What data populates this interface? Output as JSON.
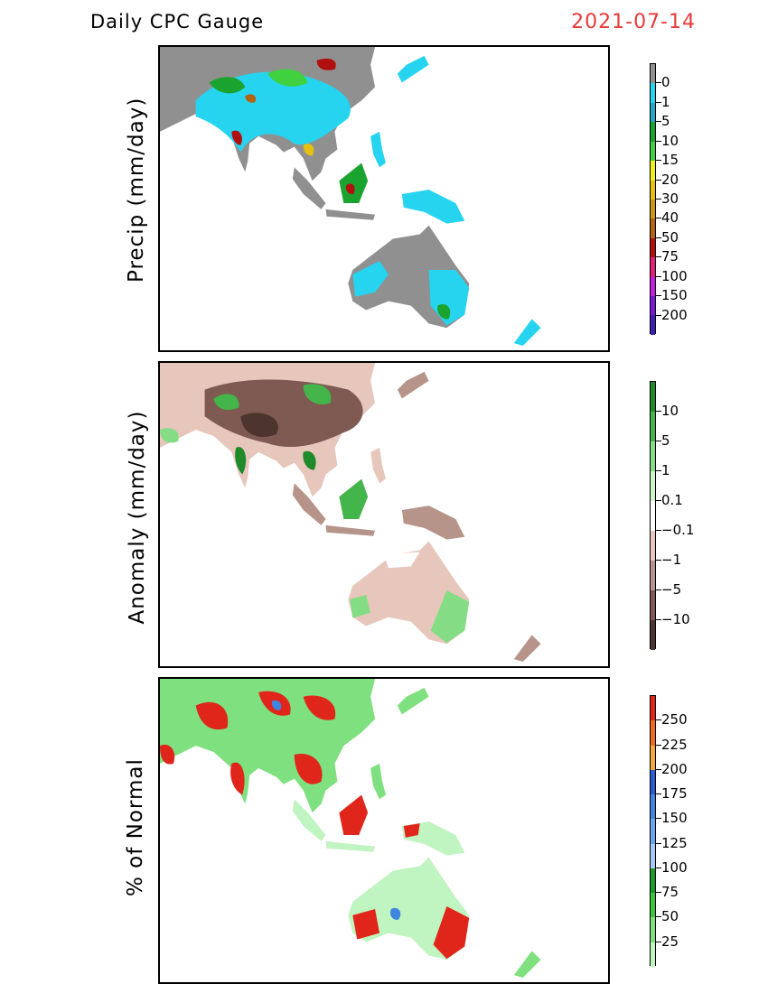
{
  "header": {
    "title": "Daily CPC Gauge",
    "date": "2021-07-14",
    "date_color": "#e83a3a"
  },
  "panels": [
    {
      "ylabel": "Precip (mm/day)",
      "colorbar": {
        "labels": [
          "0",
          "1",
          "5",
          "10",
          "15",
          "20",
          "30",
          "40",
          "50",
          "75",
          "100",
          "150",
          "200"
        ],
        "colors": [
          "#909090",
          "#26d4f0",
          "#23a6c8",
          "#1aa32e",
          "#3fd140",
          "#f0f020",
          "#e6c010",
          "#c99a10",
          "#b26414",
          "#b01010",
          "#e0207a",
          "#c020e0",
          "#7a1ad6",
          "#4020b0"
        ]
      }
    },
    {
      "ylabel": "Anomaly (mm/day)",
      "colorbar": {
        "labels": [
          "10",
          "5",
          "1",
          "0.1",
          "−0.1",
          "−1",
          "−5",
          "−10"
        ],
        "colors": [
          "#1e8a2a",
          "#43b54a",
          "#84dd84",
          "#ccf5c8",
          "#ffffff",
          "#e7c6bb",
          "#b7948a",
          "#7e5a52",
          "#4e342e"
        ]
      }
    },
    {
      "ylabel": "% of Normal",
      "colorbar": {
        "labels": [
          "250",
          "225",
          "200",
          "175",
          "150",
          "125",
          "100",
          "75",
          "50",
          "25"
        ],
        "colors": [
          "#e0261a",
          "#f06a20",
          "#f4a840",
          "#2a5cd0",
          "#3f86e0",
          "#6aa6ee",
          "#a8c8f8",
          "#1a9a2a",
          "#3cc43c",
          "#7ee07e",
          "#c0f4c0"
        ]
      }
    }
  ]
}
